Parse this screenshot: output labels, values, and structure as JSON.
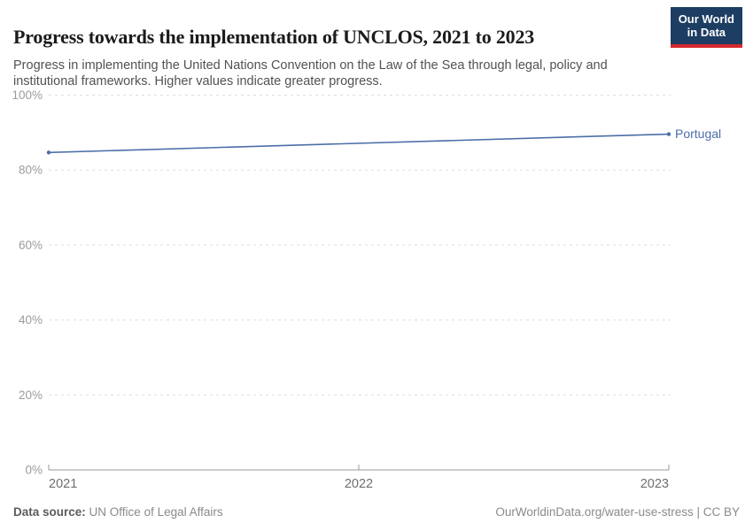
{
  "header": {
    "title": "Progress towards the implementation of UNCLOS, 2021 to 2023",
    "subtitle": "Progress in implementing the United Nations Convention on the Law of the Sea through legal, policy and institutional frameworks. Higher values indicate greater progress.",
    "logo": {
      "line1": "Our World",
      "line2": "in Data"
    }
  },
  "footer": {
    "datasource_label": "Data source:",
    "datasource_value": "UN Office of Legal Affairs",
    "credit": "OurWorldinData.org/water-use-stress | CC BY"
  },
  "colors": {
    "line": "#4c6ea9",
    "series_label": "#4c6ea9",
    "gridline": "#dedede",
    "axis_line": "#999999",
    "y_tick_label": "#9b9b9b",
    "x_tick_label": "#6e6e6e",
    "logo_bg": "#1d3d63",
    "logo_red": "#d7282f"
  },
  "chart_data": {
    "type": "line",
    "title": "Progress towards the implementation of UNCLOS, 2021 to 2023",
    "xlabel": "",
    "ylabel": "",
    "xlim": [
      2021,
      2023
    ],
    "ylim": [
      0,
      100
    ],
    "grid": "horizontal-dashed",
    "legend_position": "right-of-line",
    "x_ticks": [
      2021,
      2022,
      2023
    ],
    "x_tick_labels": [
      "2021",
      "2022",
      "2023"
    ],
    "y_ticks": [
      0,
      20,
      40,
      60,
      80,
      100
    ],
    "y_tick_labels": [
      "0%",
      "20%",
      "40%",
      "60%",
      "80%",
      "100%"
    ],
    "series": [
      {
        "name": "Portugal",
        "color": "#4c6ea9",
        "x": [
          2021,
          2023
        ],
        "values": [
          84.7,
          89.6
        ]
      }
    ]
  }
}
